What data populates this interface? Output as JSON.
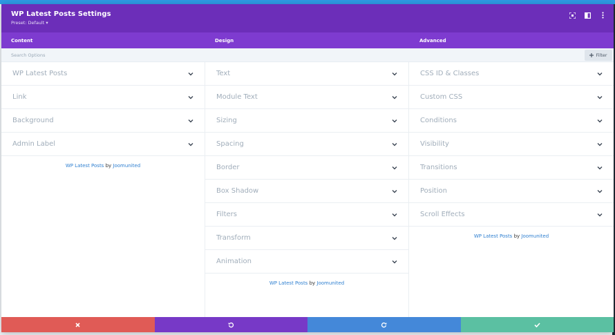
{
  "header": {
    "title": "WP Latest Posts Settings",
    "preset": "Preset: Default ▾"
  },
  "tabs": [
    {
      "label": "Content"
    },
    {
      "label": "Design"
    },
    {
      "label": "Advanced"
    }
  ],
  "search": {
    "placeholder": "Search Options",
    "filter_label": "Filter"
  },
  "columns": {
    "content": [
      "WP Latest Posts",
      "Link",
      "Background",
      "Admin Label"
    ],
    "design": [
      "Text",
      "Module Text",
      "Sizing",
      "Spacing",
      "Border",
      "Box Shadow",
      "Filters",
      "Transform",
      "Animation"
    ],
    "advanced": [
      "CSS ID & Classes",
      "Custom CSS",
      "Conditions",
      "Visibility",
      "Transitions",
      "Position",
      "Scroll Effects"
    ]
  },
  "credit": {
    "product": "WP Latest Posts",
    "by": "by",
    "author": "Joomunited"
  },
  "colors": {
    "header": "#6c2eb9",
    "tabs": "#7e3bd0",
    "discard": "#e05b56",
    "undo": "#7739c7",
    "redo": "#4488d9",
    "save": "#5bc0a2"
  }
}
